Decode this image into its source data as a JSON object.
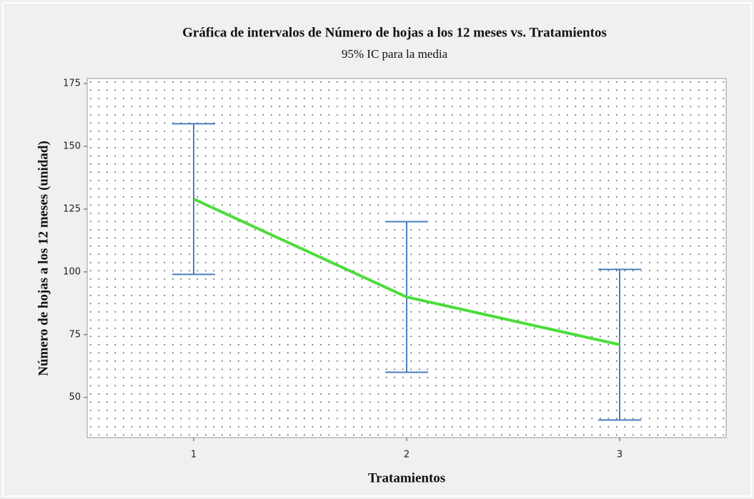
{
  "chart_data": {
    "type": "line",
    "title": "Gráfica de intervalos de Número de hojas a los 12 meses vs. Tratamientos",
    "subtitle": "95% IC para la media",
    "x_label": "Tratamientos",
    "y_label": "Número de hojas a los 12 meses (unidad)",
    "categories": [
      "1",
      "2",
      "3"
    ],
    "series": [
      {
        "values": [
          129,
          90,
          71
        ],
        "errors": [
          30,
          30,
          30
        ],
        "color": "#4ddc3c",
        "error_color": "#4a7fbf"
      }
    ],
    "ylim": [
      34,
      177
    ],
    "yticks": [
      50,
      75,
      100,
      125,
      150,
      175
    ],
    "grid": true
  }
}
